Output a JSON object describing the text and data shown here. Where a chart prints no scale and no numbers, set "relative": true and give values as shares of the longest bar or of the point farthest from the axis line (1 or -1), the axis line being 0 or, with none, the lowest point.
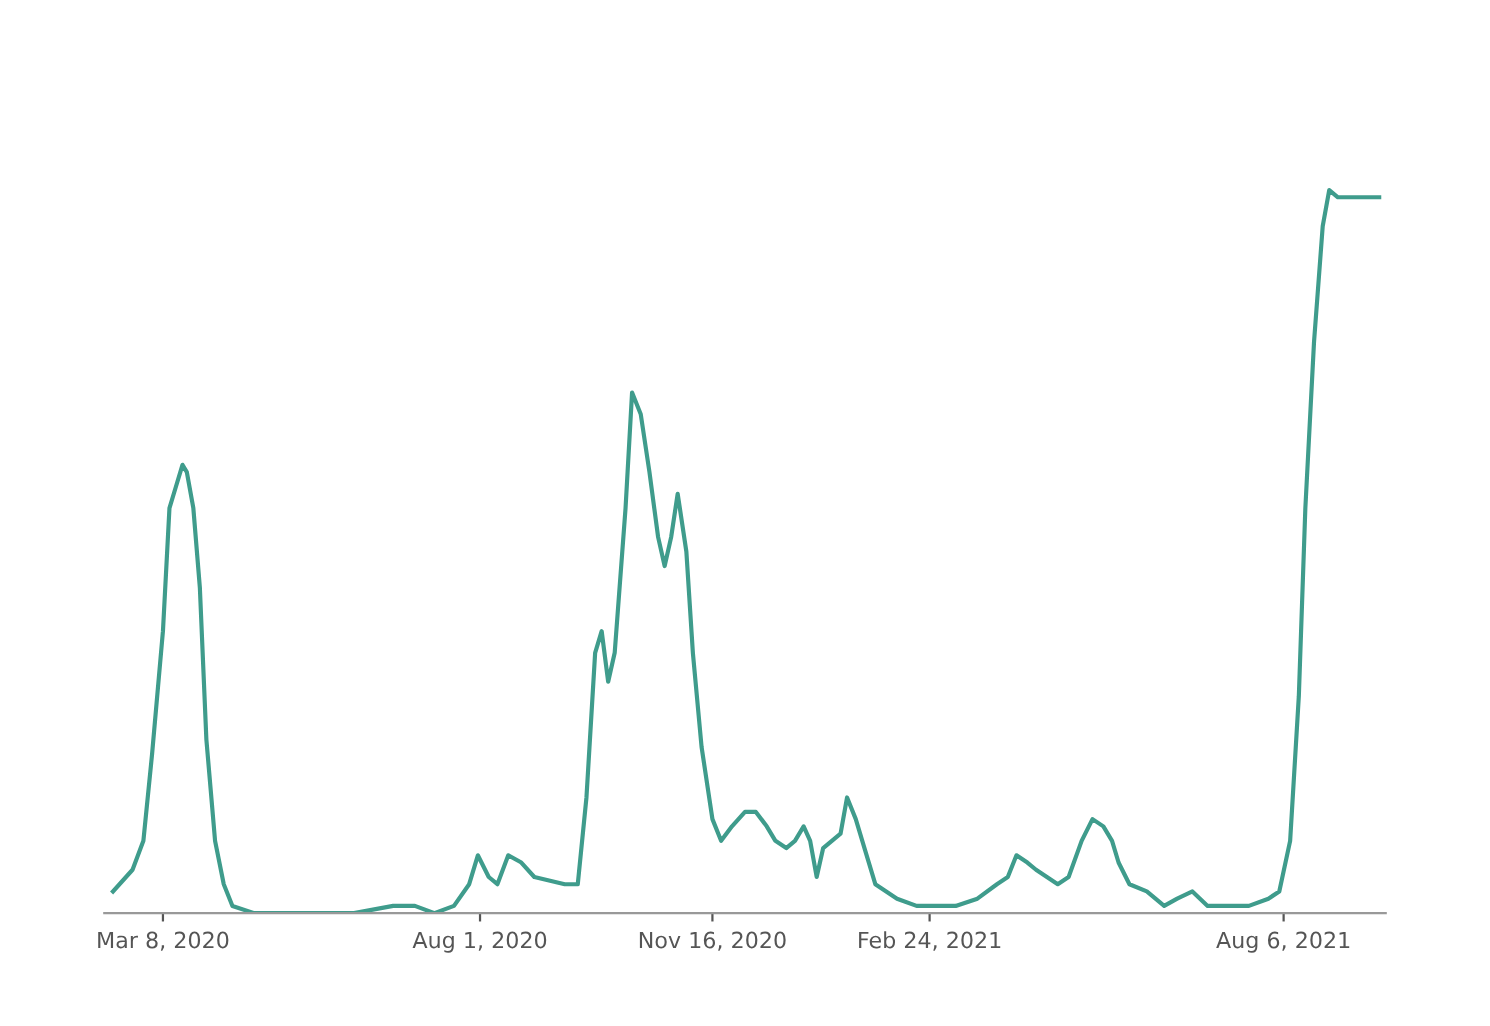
{
  "chart_data": {
    "type": "line",
    "relative": true,
    "marker": "none",
    "line_style": "solid",
    "grid": false,
    "xlim": [
      "2020-02-10",
      "2021-09-22"
    ],
    "xticks": [
      {
        "value": "2020-03-08",
        "label": "Mar 8, 2020"
      },
      {
        "value": "2020-08-01",
        "label": "Aug 1, 2020"
      },
      {
        "value": "2020-11-16",
        "label": "Nov 16, 2020"
      },
      {
        "value": "2021-02-24",
        "label": "Feb 24, 2021"
      },
      {
        "value": "2021-08-06",
        "label": "Aug 6, 2021"
      }
    ],
    "x": [
      "2020-02-14",
      "2020-02-23",
      "2020-02-28",
      "2020-03-03",
      "2020-03-08",
      "2020-03-11",
      "2020-03-14",
      "2020-03-17",
      "2020-03-19",
      "2020-03-22",
      "2020-03-25",
      "2020-03-28",
      "2020-04-01",
      "2020-04-05",
      "2020-04-09",
      "2020-04-19",
      "2020-06-04",
      "2020-06-22",
      "2020-07-02",
      "2020-07-11",
      "2020-07-20",
      "2020-07-27",
      "2020-07-31",
      "2020-08-05",
      "2020-08-09",
      "2020-08-14",
      "2020-08-20",
      "2020-08-26",
      "2020-09-09",
      "2020-09-15",
      "2020-09-19",
      "2020-09-23",
      "2020-09-26",
      "2020-09-29",
      "2020-10-02",
      "2020-10-07",
      "2020-10-10",
      "2020-10-14",
      "2020-10-18",
      "2020-10-22",
      "2020-10-25",
      "2020-10-28",
      "2020-10-31",
      "2020-11-04",
      "2020-11-07",
      "2020-11-11",
      "2020-11-16",
      "2020-11-20",
      "2020-11-25",
      "2020-12-01",
      "2020-12-06",
      "2020-12-11",
      "2020-12-15",
      "2020-12-20",
      "2020-12-24",
      "2020-12-28",
      "2020-12-31",
      "2021-01-03",
      "2021-01-06",
      "2021-01-10",
      "2021-01-14",
      "2021-01-17",
      "2021-01-21",
      "2021-01-25",
      "2021-01-30",
      "2021-02-09",
      "2021-02-18",
      "2021-02-27",
      "2021-03-08",
      "2021-03-18",
      "2021-03-27",
      "2021-04-01",
      "2021-04-05",
      "2021-04-10",
      "2021-04-14",
      "2021-04-19",
      "2021-04-24",
      "2021-04-29",
      "2021-05-05",
      "2021-05-10",
      "2021-05-15",
      "2021-05-19",
      "2021-05-22",
      "2021-05-27",
      "2021-06-04",
      "2021-06-12",
      "2021-06-18",
      "2021-06-25",
      "2021-07-02",
      "2021-07-11",
      "2021-07-21",
      "2021-07-30",
      "2021-08-04",
      "2021-08-09",
      "2021-08-13",
      "2021-08-16",
      "2021-08-20",
      "2021-08-24",
      "2021-08-27",
      "2021-08-31",
      "2021-09-09",
      "2021-09-19"
    ],
    "series": [
      {
        "color": "#3f9c8c",
        "values": [
          0.03,
          0.06,
          0.1,
          0.22,
          0.39,
          0.56,
          0.59,
          0.62,
          0.61,
          0.56,
          0.45,
          0.24,
          0.1,
          0.04,
          0.01,
          0,
          0,
          0.01,
          0.01,
          0,
          0.01,
          0.04,
          0.08,
          0.05,
          0.04,
          0.08,
          0.07,
          0.05,
          0.04,
          0.04,
          0.16,
          0.36,
          0.39,
          0.32,
          0.36,
          0.56,
          0.72,
          0.69,
          0.61,
          0.52,
          0.48,
          0.52,
          0.58,
          0.5,
          0.36,
          0.23,
          0.13,
          0.1,
          0.12,
          0.14,
          0.14,
          0.12,
          0.1,
          0.09,
          0.1,
          0.12,
          0.1,
          0.05,
          0.09,
          0.1,
          0.11,
          0.16,
          0.13,
          0.09,
          0.04,
          0.02,
          0.01,
          0.01,
          0.01,
          0.02,
          0.04,
          0.05,
          0.08,
          0.07,
          0.06,
          0.05,
          0.04,
          0.05,
          0.1,
          0.13,
          0.12,
          0.1,
          0.07,
          0.04,
          0.03,
          0.01,
          0.02,
          0.03,
          0.01,
          0.01,
          0.01,
          0.02,
          0.03,
          0.1,
          0.3,
          0.56,
          0.79,
          0.95,
          1,
          0.99,
          0.99,
          0.99
        ]
      }
    ]
  }
}
